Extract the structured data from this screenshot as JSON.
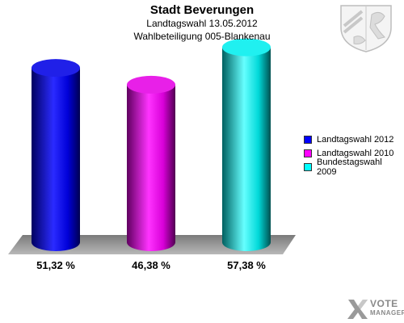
{
  "header": {
    "title": "Stadt Beverungen",
    "subtitle": "Landtagswahl 13.05.2012",
    "subtitle2": "Wahlbeteiligung 005-Blankenau"
  },
  "chart_data": {
    "type": "bar",
    "title": "Stadt Beverungen",
    "categories": [
      "Landtagswahl 2012",
      "Landtagswahl 2010",
      "Bundestagswahl 2009"
    ],
    "values": [
      51.32,
      46.38,
      57.38
    ],
    "value_labels": [
      "51,32 %",
      "46,38 %",
      "57,38 %"
    ],
    "colors": [
      "#0000ff",
      "#ff00ff",
      "#00ffff"
    ],
    "ylim": [
      0,
      63
    ],
    "grid": false,
    "legend_position": "right"
  },
  "legend": {
    "items": [
      {
        "label": "Landtagswahl 2012",
        "color": "#0000ff"
      },
      {
        "label": "Landtagswahl 2010",
        "color": "#ff00ff"
      },
      {
        "label": "Bundestagswahl 2009",
        "color": "#00ffff"
      }
    ]
  },
  "brand": {
    "line1": "VOTE",
    "line2": "MANAGER",
    "icon": "vote-manager-logo"
  },
  "crest": {
    "icon": "coat-of-arms-icon"
  }
}
